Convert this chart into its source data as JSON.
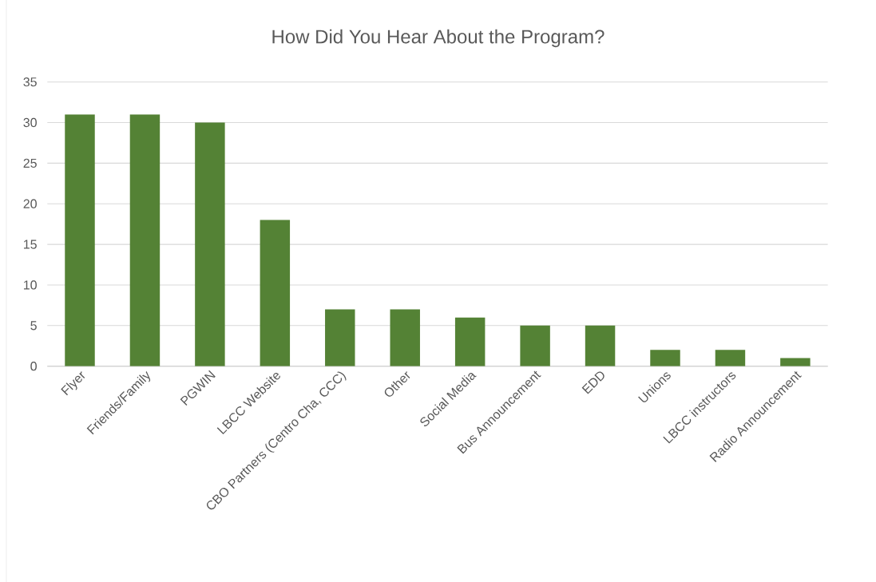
{
  "chart_data": {
    "type": "bar",
    "title": "How Did You Hear About the Program?",
    "categories": [
      "Flyer",
      "Friends/Family",
      "PGWIN",
      "LBCC Website",
      "CBO Partners (Centro Cha, CCC)",
      "Other",
      "Social Media",
      "Bus Announcement",
      "EDD",
      "Unions",
      "LBCC instructors",
      "Radio Announcement"
    ],
    "values": [
      31,
      31,
      30,
      18,
      7,
      7,
      6,
      5,
      5,
      2,
      2,
      1
    ],
    "color": "#548235",
    "ylim": [
      0,
      35
    ],
    "yticks": [
      0,
      5,
      10,
      15,
      20,
      25,
      30,
      35
    ],
    "grid": "y"
  }
}
